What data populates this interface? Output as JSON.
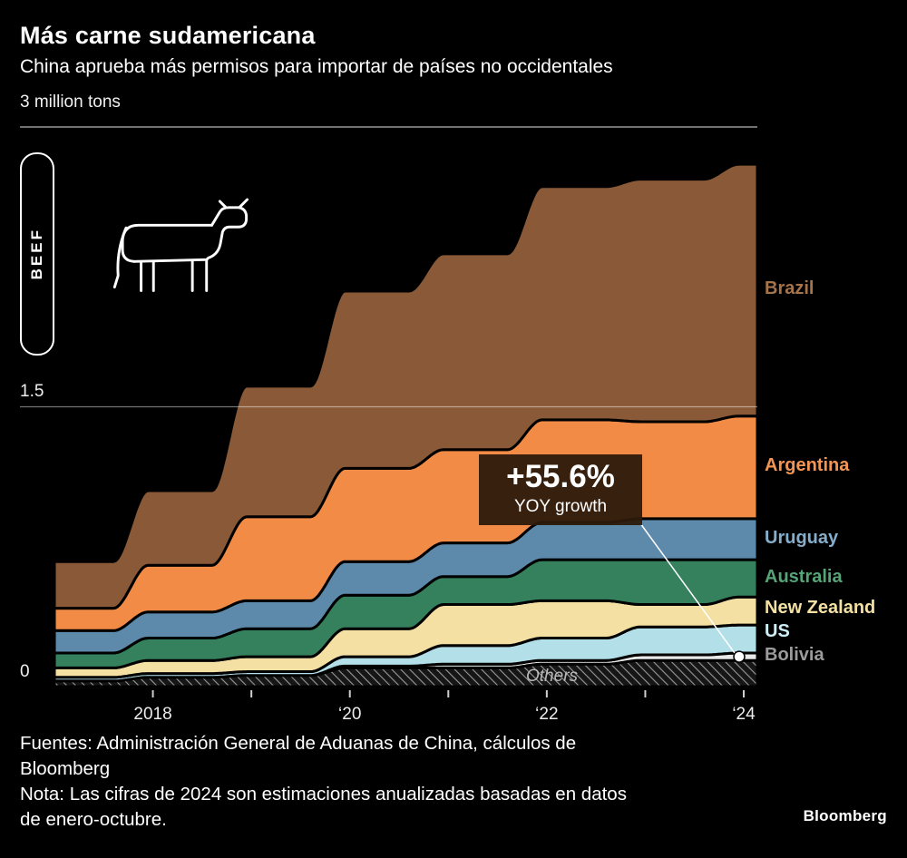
{
  "header": {
    "title": "Más carne sudamericana",
    "subtitle": "China aprueba más permisos para importar de países no occidentales"
  },
  "tab": {
    "label": "BEEF"
  },
  "chart_data": {
    "type": "area",
    "stacked": true,
    "x": [
      2017,
      2018,
      2019,
      2020,
      2021,
      2022,
      2023,
      2024
    ],
    "x_tick_positions": [
      2018,
      2020,
      2022,
      2024
    ],
    "x_tick_labels": [
      "2018",
      "‘20",
      "‘22",
      "‘24"
    ],
    "ylim": [
      0,
      3
    ],
    "y_ticks": [
      0,
      1.5,
      3
    ],
    "y_axis": {
      "top": "3 million tons",
      "mid": "1.5",
      "zero": "0"
    },
    "grid": "horizontal",
    "legend_position": "right",
    "series": [
      {
        "name": "Others",
        "color": "hatch",
        "label_color": "#9b9b9b",
        "values": [
          0.03,
          0.05,
          0.06,
          0.1,
          0.1,
          0.12,
          0.14,
          0.14
        ]
      },
      {
        "name": "Bolivia",
        "color": "#e8e8e8",
        "label_color": "#9b9b9b",
        "values": [
          0.0,
          0.0,
          0.0,
          0.01,
          0.02,
          0.02,
          0.03,
          0.04
        ]
      },
      {
        "name": "US",
        "color": "#b3dfe9",
        "label_color": "#cdeef6",
        "values": [
          0.02,
          0.02,
          0.02,
          0.05,
          0.1,
          0.12,
          0.15,
          0.15
        ]
      },
      {
        "name": "New Zealand",
        "color": "#f5e0a3",
        "label_color": "#f5e0a3",
        "values": [
          0.05,
          0.07,
          0.08,
          0.15,
          0.22,
          0.2,
          0.12,
          0.15
        ]
      },
      {
        "name": "Australia",
        "color": "#35815e",
        "label_color": "#55a377",
        "values": [
          0.08,
          0.12,
          0.15,
          0.18,
          0.15,
          0.22,
          0.24,
          0.2
        ]
      },
      {
        "name": "Uruguay",
        "color": "#5d89ab",
        "label_color": "#85aecd",
        "values": [
          0.12,
          0.14,
          0.15,
          0.18,
          0.18,
          0.2,
          0.22,
          0.22
        ]
      },
      {
        "name": "Argentina",
        "color": "#f28b45",
        "label_color": "#f39555",
        "values": [
          0.12,
          0.25,
          0.45,
          0.5,
          0.5,
          0.55,
          0.52,
          0.55
        ]
      },
      {
        "name": "Brazil",
        "color": "#8a5a38",
        "label_color": "#a6744b",
        "values": [
          0.25,
          0.4,
          0.7,
          0.95,
          1.05,
          1.25,
          1.3,
          1.35
        ]
      }
    ],
    "annotation": {
      "text": "+55.6%",
      "subtext": "YOY growth",
      "series": "Bolivia"
    }
  },
  "footer": {
    "source": "Fuentes: Administración General de Aduanas de China, cálculos de Bloomberg",
    "note": "Nota: Las cifras de 2024 son estimaciones anualizadas basadas en datos de enero-octubre."
  },
  "brand": "Bloomberg"
}
